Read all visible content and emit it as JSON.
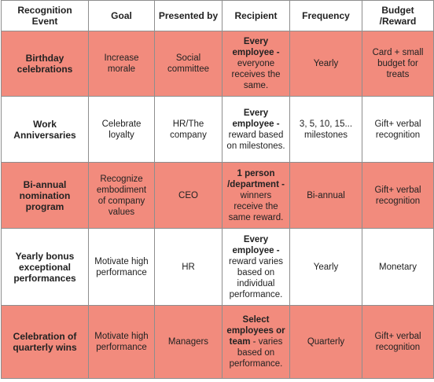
{
  "colors": {
    "highlight_row": "#f28b7d",
    "plain_row": "#ffffff",
    "border": "#8e8e8e"
  },
  "headers": {
    "event": "Recognition Event",
    "goal": "Goal",
    "presented_by": "Presented by",
    "recipient": "Recipient",
    "frequency": "Frequency",
    "budget": "Budget /Reward"
  },
  "rows": [
    {
      "highlighted": true,
      "event": "Birthday celebrations",
      "goal": "Increase morale",
      "presented_by": "Social committee",
      "recipient_bold": "Every employee -",
      "recipient_rest": "everyone receives the same.",
      "frequency": "Yearly",
      "budget": "Card + small budget for treats"
    },
    {
      "highlighted": false,
      "event": "Work Anniversaries",
      "goal": "Celebrate loyalty",
      "presented_by": "HR/The company",
      "recipient_bold": "Every employee -",
      "recipient_rest": "reward based on milestones.",
      "frequency": "3, 5, 10, 15... milestones",
      "budget": "Gift+ verbal recognition"
    },
    {
      "highlighted": true,
      "event": "Bi-annual nomination program",
      "goal": "Recognize embodiment of company values",
      "presented_by": "CEO",
      "recipient_bold": "1 person /department -",
      "recipient_rest": "winners receive the same reward.",
      "frequency": "Bi-annual",
      "budget": "Gift+ verbal recognition"
    },
    {
      "highlighted": false,
      "event": "Yearly bonus exceptional performances",
      "goal": "Motivate high performance",
      "presented_by": "HR",
      "recipient_bold": "Every employee -",
      "recipient_rest": "reward varies based on individual performance.",
      "frequency": "Yearly",
      "budget": "Monetary"
    },
    {
      "highlighted": true,
      "event": "Celebration of quarterly wins",
      "goal": "Motivate high performance",
      "presented_by": "Managers",
      "recipient_bold": "Select employees or team",
      "recipient_rest": "- varies based on performance.",
      "frequency": "Quarterly",
      "budget": "Gift+ verbal recognition"
    }
  ]
}
